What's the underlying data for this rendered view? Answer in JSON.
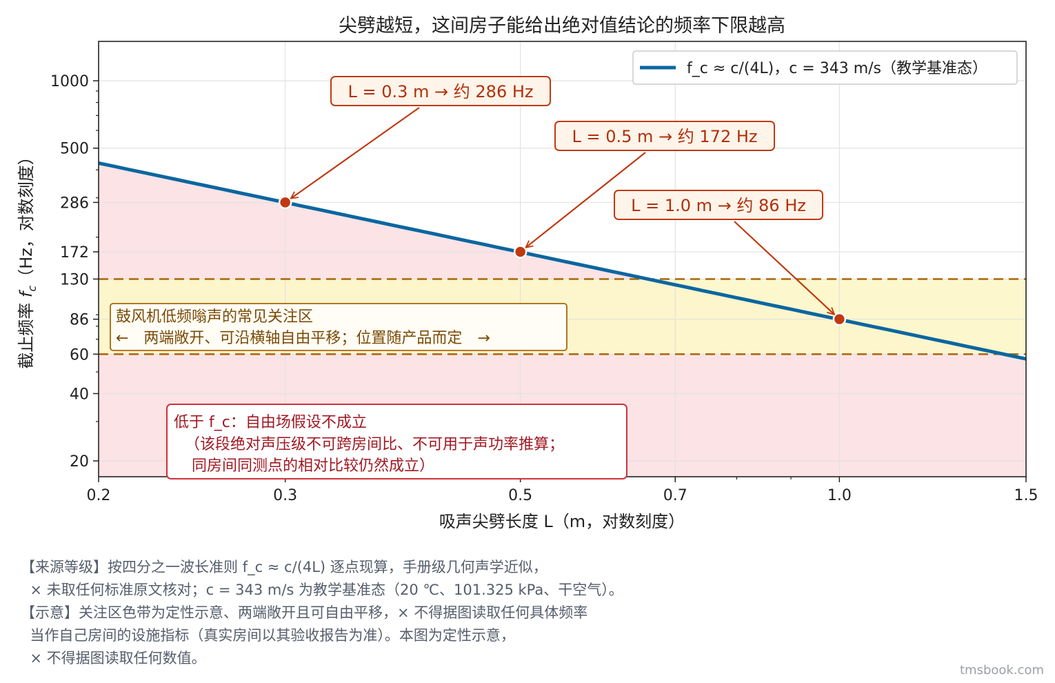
{
  "chart_data": {
    "type": "line",
    "title": "尖劈越短，这间房子能给出绝对值结论的频率下限越高",
    "xlabel": "吸声尖劈长度 L（m，对数刻度）",
    "ylabel": "截止频率 f_c（Hz，对数刻度）",
    "xscale": "log",
    "yscale": "log",
    "xlim": [
      0.2,
      1.5
    ],
    "ylim": [
      17,
      1500
    ],
    "xticks": [
      0.2,
      0.3,
      0.5,
      0.7,
      1.0,
      1.5
    ],
    "xtick_labels": [
      "0.2",
      "0.3",
      "0.5",
      "0.7",
      "1.0",
      "1.5"
    ],
    "yticks": [
      20,
      40,
      60,
      86,
      130,
      172,
      286,
      500,
      1000
    ],
    "ytick_labels": [
      "20",
      "40",
      "60",
      "86",
      "130",
      "172",
      "286",
      "500",
      "1000"
    ],
    "grid": true,
    "legend_position": "top-right",
    "series": [
      {
        "name": "f_c ≈ c/(4L)，c = 343 m/s（教学基准态）",
        "color": "#0a66a0",
        "x": [
          0.2,
          0.3,
          0.5,
          0.7,
          1.0,
          1.5
        ],
        "y": [
          428.75,
          285.8,
          171.5,
          122.5,
          85.75,
          57.17
        ]
      }
    ],
    "points": [
      {
        "x": 0.3,
        "y": 286,
        "label": "L = 0.3 m → 约 286 Hz"
      },
      {
        "x": 0.5,
        "y": 172,
        "label": "L = 0.5 m → 约 172 Hz"
      },
      {
        "x": 1.0,
        "y": 86,
        "label": "L = 1.0 m → 约 86 Hz"
      }
    ],
    "band": {
      "y_range": [
        60,
        130
      ],
      "label_line1": "鼓风机低频嗡声的常见关注区",
      "label_line2": "←　两端敞开、可沿横轴自由平移；位置随产品而定　→"
    },
    "shaded_region_note": {
      "line1": "低于 f_c：自由场假设不成立",
      "line2": "（该段绝对声压级不可跨房间比、不可用于声功率推算；",
      "line3": "同房间同测点的相对比较仍然成立）"
    }
  },
  "footnotes": [
    "【来源等级】按四分之一波长准则 f_c ≈ c/(4L) 逐点现算，手册级几何声学近似，",
    "  × 未取任何标准原文核对；c = 343 m/s 为教学基准态（20 ℃、101.325 kPa、干空气）。",
    "【示意】关注区色带为定性示意、两端敞开且可自由平移，× 不得据图读取任何具体频率",
    "  当作自己房间的设施指标（真实房间以其验收报告为准）。本图为定性示意，",
    "  × 不得据图读取任何数值。"
  ],
  "watermark": "tmsbook.com",
  "colors": {
    "line": "#0a66a0",
    "marker": "#c0390f",
    "annotation": "#c0390f",
    "band_fill": "#fdf6c8",
    "band_edge": "#a8660a",
    "region_fill": "#fbe3e6",
    "note_edge": "#d03038",
    "note_text": "#a01822"
  }
}
